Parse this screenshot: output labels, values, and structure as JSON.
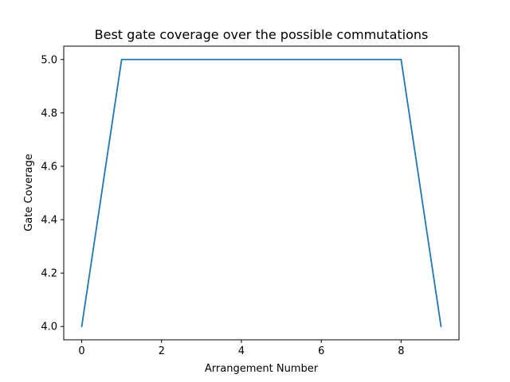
{
  "chart_data": {
    "type": "line",
    "title": "Best gate coverage over the possible commutations",
    "xlabel": "Arrangement Number",
    "ylabel": "Gate Coverage",
    "x": [
      0,
      1,
      2,
      3,
      4,
      5,
      6,
      7,
      8,
      9
    ],
    "series": [
      {
        "values": [
          4.0,
          5.0,
          5.0,
          5.0,
          5.0,
          5.0,
          5.0,
          5.0,
          5.0,
          4.0
        ],
        "color": "#1f77b4"
      }
    ],
    "xlim": [
      -0.45,
      9.45
    ],
    "ylim": [
      3.95,
      5.05
    ],
    "xticks": [
      0,
      2,
      4,
      6,
      8
    ],
    "yticks": [
      4.0,
      4.2,
      4.4,
      4.6,
      4.8,
      5.0
    ],
    "xtick_labels": [
      "0",
      "2",
      "4",
      "6",
      "8"
    ],
    "ytick_labels": [
      "4.0",
      "4.2",
      "4.4",
      "4.6",
      "4.8",
      "5.0"
    ],
    "grid": false,
    "legend": "none"
  }
}
